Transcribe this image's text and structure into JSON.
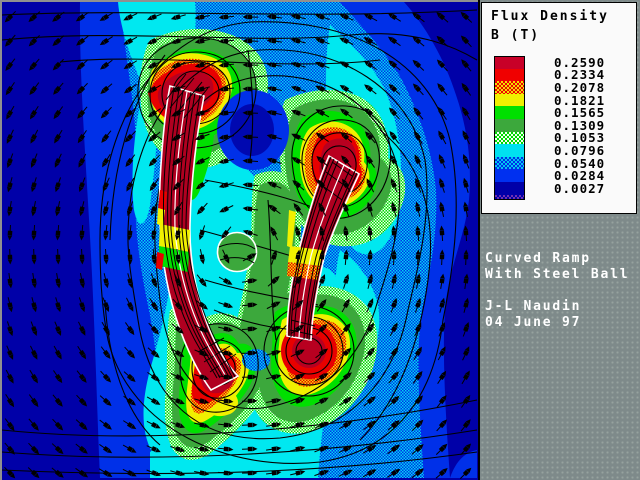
{
  "legend": {
    "title_line1": "Flux Density",
    "title_line2": "B (T)",
    "entries": [
      {
        "value": "0.2590",
        "color": "#C80028"
      },
      {
        "value": "0.2334",
        "color": "#F00000"
      },
      {
        "value": "0.2078",
        "color": "#F00000",
        "color2": "#F0E000"
      },
      {
        "value": "0.1821",
        "color": "#F0F000"
      },
      {
        "value": "0.1565",
        "color": "#00E000"
      },
      {
        "value": "0.1309",
        "color": "#3CA83C"
      },
      {
        "value": "0.1053",
        "color": "#00D800",
        "color2": "#F0FFF0"
      },
      {
        "value": "0.0796",
        "color": "#00E0F0"
      },
      {
        "value": "0.0540",
        "color": "#00C8F0",
        "color2": "#0030E8"
      },
      {
        "value": "0.0284",
        "color": "#0030F0"
      },
      {
        "value": "0.0027",
        "color": "#0000A8"
      }
    ],
    "end_cap": {
      "color": "#7030B0",
      "color2": "#0000A8"
    }
  },
  "info_panel": {
    "text": "Curved Ramp\nWith Steel Ball\n\nJ-L Naudin\n04 June 97"
  },
  "colors": {
    "navy": "#0000A8",
    "blue": "#0030E8",
    "cyan": "#00E8F0",
    "pale_green": "#00D800",
    "medium_green": "#3CA83C",
    "bright_green": "#00E000",
    "yellow": "#F0F000",
    "red": "#E80000",
    "dark_red": "#B00020",
    "magnet_outline": "#FFFFFF",
    "contour": "#000000",
    "panel_gray": "#7E8A8A",
    "legend_bg": "#FAFAFA"
  },
  "chart_data": {
    "type": "heatmap",
    "title": "Flux Density",
    "units_label": "B (T)",
    "legend_position": "top-right",
    "legend_levels": [
      0.259,
      0.2334,
      0.2078,
      0.1821,
      0.1565,
      0.1309,
      0.1053,
      0.0796,
      0.054,
      0.0284,
      0.0027
    ],
    "legend_colors": [
      "#C80028",
      "#F00000",
      "#F08000",
      "#F0F000",
      "#00E000",
      "#3CA83C",
      "#78EC78",
      "#00E0F0",
      "#0080EC",
      "#0030F0",
      "#0000A8"
    ],
    "annotations": [
      "Curved Ramp",
      "With Steel Ball",
      "J-L Naudin",
      "04 June 97"
    ],
    "elements": [
      "left curved magnet bar",
      "right curved magnet bar",
      "steel ball",
      "flux contour lines",
      "vector arrow grid"
    ]
  }
}
